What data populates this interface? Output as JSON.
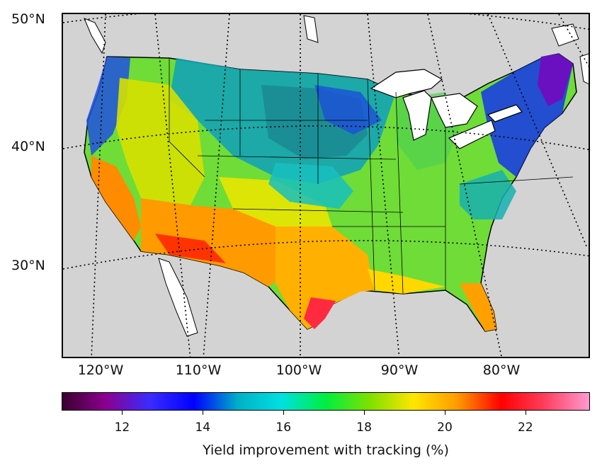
{
  "map": {
    "latitude_labels": [
      "50°N",
      "40°N",
      "30°N"
    ],
    "longitude_labels": [
      "120°W",
      "110°W",
      "100°W",
      "90°W",
      "80°W"
    ],
    "land_color": "#d3d3d3",
    "water_color": "#ffffff",
    "gridline_style": "dotted black",
    "projection": "conic",
    "region": "contiguous United States with state borders",
    "regional_values_percent": {
      "Pacific Northwest coast": 13.5,
      "California coast": 20.5,
      "Desert Southwest": 21.5,
      "Northern Plains": 15,
      "Central Plains": 16,
      "Great Lakes": 17,
      "Northeast": 13,
      "Maine": 12,
      "Southeast": 17,
      "Texas Gulf coast": 23,
      "Florida": 20.5
    }
  },
  "colorbar": {
    "min": 10.5,
    "max": 23.6,
    "ticks": [
      12,
      14,
      16,
      18,
      20,
      22
    ],
    "tick_labels": [
      "12",
      "14",
      "16",
      "18",
      "20",
      "22"
    ],
    "colormap": "nipy_spectral-like",
    "stops": [
      "#3a0030",
      "#8b0090",
      "#3a2cff",
      "#0000ff",
      "#00b0c8",
      "#00e0e0",
      "#00ee40",
      "#7fe000",
      "#ffe600",
      "#ff9a00",
      "#ff0000",
      "#ff4060",
      "#ff9ad0"
    ],
    "title": "Yield improvement with tracking (%)"
  }
}
